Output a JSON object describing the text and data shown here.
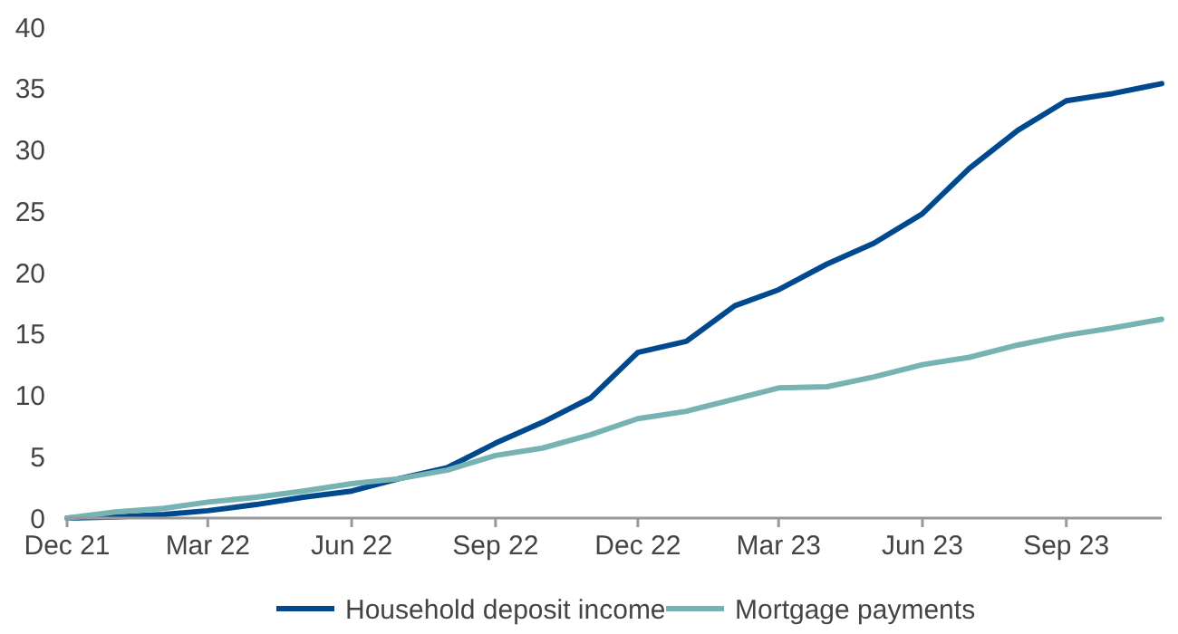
{
  "chart_data": {
    "type": "line",
    "x": [
      "2021-12",
      "2022-01",
      "2022-02",
      "2022-03",
      "2022-04",
      "2022-05",
      "2022-06",
      "2022-07",
      "2022-08",
      "2022-09",
      "2022-10",
      "2022-11",
      "2022-12",
      "2023-01",
      "2023-02",
      "2023-03",
      "2023-04",
      "2023-05",
      "2023-06",
      "2023-07",
      "2023-08",
      "2023-09",
      "2023-10",
      "2023-11"
    ],
    "series": [
      {
        "name": "Household deposit income",
        "color": "#00498f",
        "values": [
          0,
          0.1,
          0.3,
          0.6,
          1.1,
          1.7,
          2.2,
          3.2,
          4.1,
          6.1,
          7.8,
          9.8,
          13.5,
          14.4,
          17.3,
          18.6,
          20.7,
          22.4,
          24.8,
          28.5,
          31.6,
          34.0,
          34.6,
          35.4
        ]
      },
      {
        "name": "Mortgage payments",
        "color": "#77b3b3",
        "values": [
          0,
          0.5,
          0.8,
          1.3,
          1.7,
          2.2,
          2.8,
          3.2,
          3.9,
          5.1,
          5.7,
          6.8,
          8.1,
          8.7,
          9.7,
          10.6,
          10.7,
          11.5,
          12.5,
          13.1,
          14.1,
          14.9,
          15.5,
          16.2
        ]
      }
    ],
    "xlim": [
      "2021-12",
      "2023-11"
    ],
    "xticks": [
      {
        "value": "2021-12",
        "label": "Dec 21"
      },
      {
        "value": "2022-03",
        "label": "Mar 22"
      },
      {
        "value": "2022-06",
        "label": "Jun 22"
      },
      {
        "value": "2022-09",
        "label": "Sep 22"
      },
      {
        "value": "2022-12",
        "label": "Dec 22"
      },
      {
        "value": "2023-03",
        "label": "Mar 23"
      },
      {
        "value": "2023-06",
        "label": "Jun 23"
      },
      {
        "value": "2023-09",
        "label": "Sep 23"
      }
    ],
    "ylim": [
      0,
      40
    ],
    "yticks": [
      0,
      5,
      10,
      15,
      20,
      25,
      30,
      35,
      40
    ],
    "legend": "bottom",
    "line_style": "solid",
    "marker": "none"
  }
}
